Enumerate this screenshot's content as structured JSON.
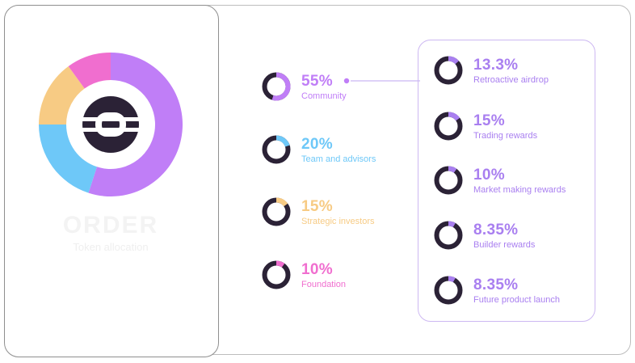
{
  "colors": {
    "ring_dark": "#2b2236",
    "community": "#c07ef7",
    "team": "#6ec8f8",
    "strategic": "#f7cb84",
    "foundation": "#f06ecf",
    "purple_text": "#a97ff0",
    "connector": "#cbb6f4"
  },
  "chart_data": {
    "type": "pie",
    "variant": "donut",
    "title": "",
    "categories": [
      "Community",
      "Team and advisors",
      "Strategic investors",
      "Foundation"
    ],
    "values": [
      55,
      20,
      15,
      10
    ],
    "colors": [
      "#c07ef7",
      "#6ec8f8",
      "#f7cb84",
      "#f06ecf"
    ],
    "breakdown": {
      "parent": "Community",
      "categories": [
        "Retroactive airdrop",
        "Trading rewards",
        "Market making rewards",
        "Builder rewards",
        "Future product launch"
      ],
      "values": [
        13.3,
        15,
        10,
        8.35,
        8.35
      ]
    }
  },
  "allocations": [
    {
      "pct": "55%",
      "label": "Community",
      "value": 55,
      "color": "#c07ef7"
    },
    {
      "pct": "20%",
      "label": "Team and advisors",
      "value": 20,
      "color": "#6ec8f8"
    },
    {
      "pct": "15%",
      "label": "Strategic investors",
      "value": 15,
      "color": "#f7cb84"
    },
    {
      "pct": "10%",
      "label": "Foundation",
      "value": 10,
      "color": "#f06ecf"
    }
  ],
  "community_breakdown": [
    {
      "pct": "13.3%",
      "label": "Retroactive airdrop",
      "value": 13.3
    },
    {
      "pct": "15%",
      "label": "Trading rewards",
      "value": 15
    },
    {
      "pct": "10%",
      "label": "Market making rewards",
      "value": 10
    },
    {
      "pct": "8.35%",
      "label": "Builder rewards",
      "value": 8.35
    },
    {
      "pct": "8.35%",
      "label": "Future product launch",
      "value": 8.35
    }
  ],
  "left_card": {
    "brand": "ORDER",
    "subtitle": "Token allocation",
    "footer": ""
  }
}
